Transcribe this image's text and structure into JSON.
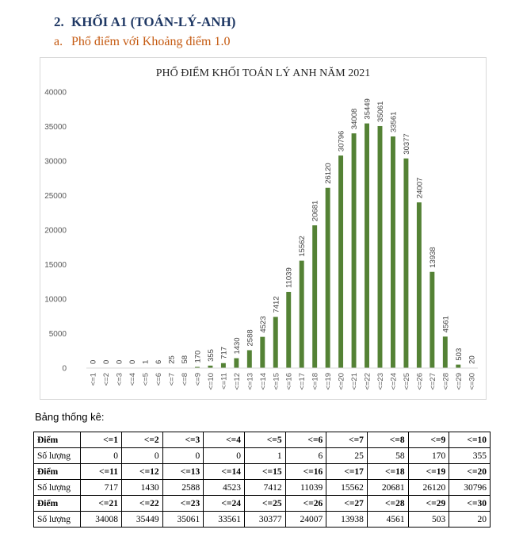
{
  "heading": {
    "number": "2.",
    "text": "KHỐI A1 (TOÁN-LÝ-ANH)"
  },
  "subheading": {
    "number": "a.",
    "text": "Phổ điểm với Khoảng điểm 1.0"
  },
  "chart_data": {
    "type": "bar",
    "title": "PHỔ ĐIỂM KHỐI TOÁN LÝ ANH NĂM 2021",
    "categories": [
      "<=1",
      "<=2",
      "<=3",
      "<=4",
      "<=5",
      "<=6",
      "<=7",
      "<=8",
      "<=9",
      "<=10",
      "<=11",
      "<=12",
      "<=13",
      "<=14",
      "<=15",
      "<=16",
      "<=17",
      "<=18",
      "<=19",
      "<=20",
      "<=21",
      "<=22",
      "<=23",
      "<=24",
      "<=25",
      "<=26",
      "<=27",
      "<=28",
      "<=29",
      "<=30"
    ],
    "values": [
      0,
      0,
      0,
      0,
      1,
      6,
      25,
      58,
      170,
      355,
      717,
      1430,
      2588,
      4523,
      7412,
      11039,
      15562,
      20681,
      26120,
      30796,
      34008,
      35449,
      35061,
      33561,
      30377,
      24007,
      13938,
      4561,
      503,
      20
    ],
    "yticks": [
      0,
      5000,
      10000,
      15000,
      20000,
      25000,
      30000,
      35000,
      40000
    ],
    "ylim": [
      0,
      40000
    ],
    "xlabel": "",
    "ylabel": "",
    "bar_color": "#548235",
    "grid": false
  },
  "table_title": "Bảng thống kê:",
  "table": {
    "label_diem": "Điểm",
    "label_soluong": "Số lượng",
    "groups": [
      {
        "diem": [
          "<=1",
          "<=2",
          "<=3",
          "<=4",
          "<=5",
          "<=6",
          "<=7",
          "<=8",
          "<=9",
          "<=10"
        ],
        "soluong": [
          "0",
          "0",
          "0",
          "0",
          "1",
          "6",
          "25",
          "58",
          "170",
          "355"
        ]
      },
      {
        "diem": [
          "<=11",
          "<=12",
          "<=13",
          "<=14",
          "<=15",
          "<=16",
          "<=17",
          "<=18",
          "<=19",
          "<=20"
        ],
        "soluong": [
          "717",
          "1430",
          "2588",
          "4523",
          "7412",
          "11039",
          "15562",
          "20681",
          "26120",
          "30796"
        ]
      },
      {
        "diem": [
          "<=21",
          "<=22",
          "<=23",
          "<=24",
          "<=25",
          "<=26",
          "<=27",
          "<=28",
          "<=29",
          "<=30"
        ],
        "soluong": [
          "34008",
          "35449",
          "35061",
          "33561",
          "30377",
          "24007",
          "13938",
          "4561",
          "503",
          "20"
        ]
      }
    ]
  }
}
